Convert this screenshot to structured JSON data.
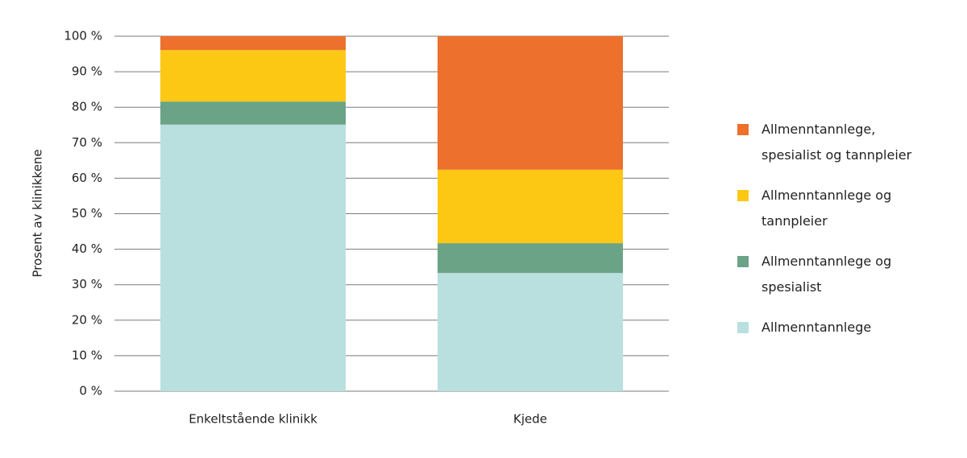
{
  "chart_data": {
    "type": "stacked_bar",
    "y_label": "Prosent av klinikkene",
    "categories": [
      "Enkeltstående klinikk",
      "Kjede"
    ],
    "series": [
      {
        "name": "Allmenntannlege",
        "color": "#b9e0df",
        "values": [
          75.1,
          33.3
        ]
      },
      {
        "name": "Allmenntannlege og spesialist",
        "color": "#6ba387",
        "values": [
          6.5,
          8.4
        ]
      },
      {
        "name": "Allmenntannlege og tannpleier",
        "color": "#fdc814",
        "values": [
          14.5,
          20.7
        ]
      },
      {
        "name": "Allmenntannlege, spesialist og tannpleier",
        "color": "#ed702d",
        "values": [
          3.9,
          37.6
        ]
      }
    ],
    "ylim": [
      0,
      100
    ],
    "yticks": [
      {
        "value": 0,
        "label": "0 %"
      },
      {
        "value": 10,
        "label": "10 %"
      },
      {
        "value": 20,
        "label": "20 %"
      },
      {
        "value": 30,
        "label": "30 %"
      },
      {
        "value": 40,
        "label": "40 %"
      },
      {
        "value": 50,
        "label": "50 %"
      },
      {
        "value": 60,
        "label": "60 %"
      },
      {
        "value": 70,
        "label": "70 %"
      },
      {
        "value": 80,
        "label": "80 %"
      },
      {
        "value": 90,
        "label": "90 %"
      },
      {
        "value": 100,
        "label": "100 %"
      }
    ],
    "grid": true,
    "legend": "right"
  }
}
